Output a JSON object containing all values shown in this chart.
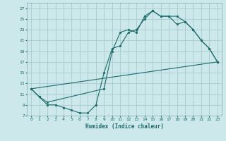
{
  "title": "",
  "xlabel": "Humidex (Indice chaleur)",
  "bg_color": "#cde8ea",
  "grid_color": "#aacfd2",
  "line_color": "#1a6b6b",
  "xlim": [
    -0.5,
    23.5
  ],
  "ylim": [
    7,
    28
  ],
  "xticks": [
    0,
    1,
    2,
    3,
    4,
    5,
    6,
    7,
    8,
    9,
    10,
    11,
    12,
    13,
    14,
    15,
    16,
    17,
    18,
    19,
    20,
    21,
    22,
    23
  ],
  "yticks": [
    7,
    9,
    11,
    13,
    15,
    17,
    19,
    21,
    23,
    25,
    27
  ],
  "line1_x": [
    0,
    1,
    2,
    3,
    4,
    5,
    6,
    7,
    8,
    9,
    10,
    11,
    12,
    13,
    14,
    15,
    16,
    17,
    18,
    19,
    20,
    21,
    22,
    23
  ],
  "line1_y": [
    12.0,
    10.5,
    9.0,
    9.0,
    8.5,
    8.0,
    7.5,
    7.5,
    9.0,
    15.0,
    19.5,
    20.0,
    22.5,
    23.0,
    25.0,
    26.5,
    25.5,
    25.5,
    24.0,
    24.5,
    23.0,
    21.0,
    19.5,
    17.0
  ],
  "line2_x": [
    0,
    1,
    2,
    9,
    10,
    11,
    12,
    13,
    14,
    15,
    16,
    17,
    18,
    19,
    20,
    21,
    22,
    23
  ],
  "line2_y": [
    12.0,
    10.5,
    9.5,
    12.0,
    19.0,
    22.5,
    23.0,
    22.5,
    25.5,
    26.5,
    25.5,
    25.5,
    25.5,
    24.5,
    23.0,
    21.0,
    19.5,
    17.0
  ],
  "line3_x": [
    0,
    23
  ],
  "line3_y": [
    12.0,
    17.0
  ]
}
